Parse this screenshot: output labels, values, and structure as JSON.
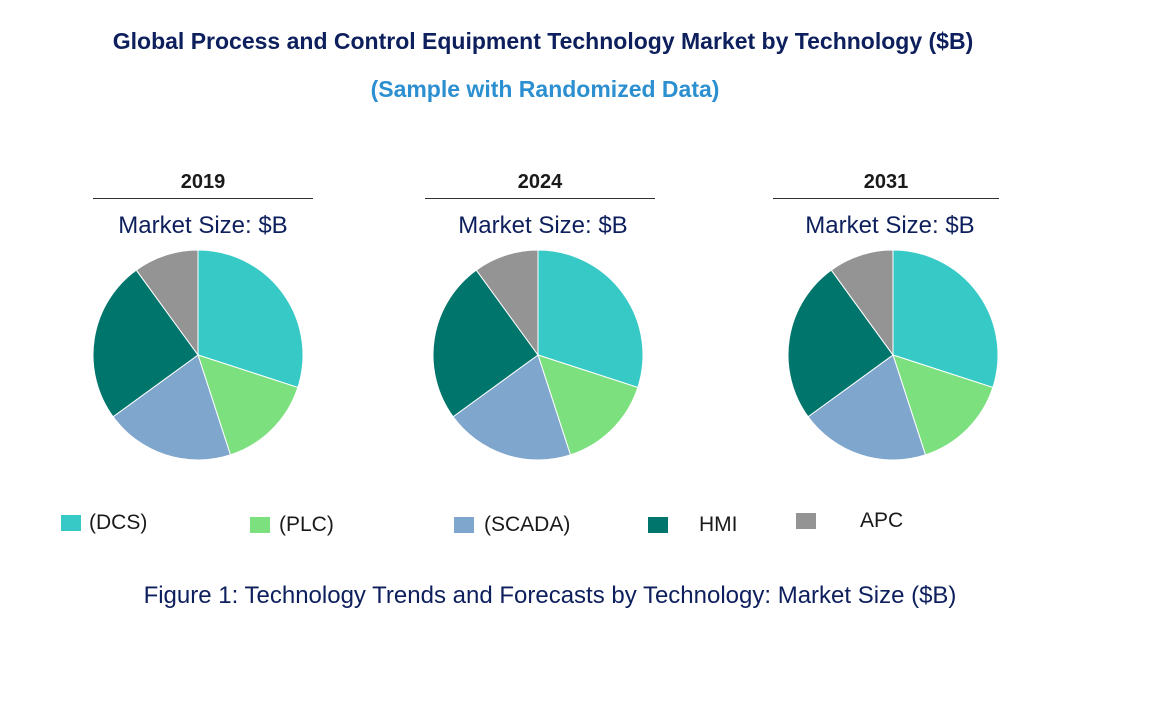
{
  "title": "Global Process and Control Equipment Technology Market by Technology ($B)",
  "subtitle": "(Sample with Randomized Data)",
  "caption": "Figure 1: Technology Trends and Forecasts by Technology: Market Size ($B)",
  "colors": {
    "DCS": "#36c9c6",
    "PLC": "#7ce07e",
    "SCADA": "#7fa6cc",
    "HMI": "#00756c",
    "APC": "#949494"
  },
  "legend": [
    {
      "label": "(DCS)",
      "key": "DCS"
    },
    {
      "label": "(PLC)",
      "key": "PLC"
    },
    {
      "label": "(SCADA)",
      "key": "SCADA"
    },
    {
      "label": "HMI",
      "key": "HMI"
    },
    {
      "label": "APC",
      "key": "APC"
    }
  ],
  "chart_data": [
    {
      "type": "pie",
      "title": "2019",
      "subtitle": "Market Size: $B",
      "labels": [
        "DCS",
        "PLC",
        "SCADA",
        "HMI",
        "APC"
      ],
      "values": [
        30,
        15,
        20,
        25,
        10
      ]
    },
    {
      "type": "pie",
      "title": "2024",
      "subtitle": "Market Size: $B",
      "labels": [
        "DCS",
        "PLC",
        "SCADA",
        "HMI",
        "APC"
      ],
      "values": [
        30,
        15,
        20,
        25,
        10
      ]
    },
    {
      "type": "pie",
      "title": "2031",
      "subtitle": "Market Size: $B",
      "labels": [
        "DCS",
        "PLC",
        "SCADA",
        "HMI",
        "APC"
      ],
      "values": [
        30,
        15,
        20,
        25,
        10
      ]
    }
  ]
}
